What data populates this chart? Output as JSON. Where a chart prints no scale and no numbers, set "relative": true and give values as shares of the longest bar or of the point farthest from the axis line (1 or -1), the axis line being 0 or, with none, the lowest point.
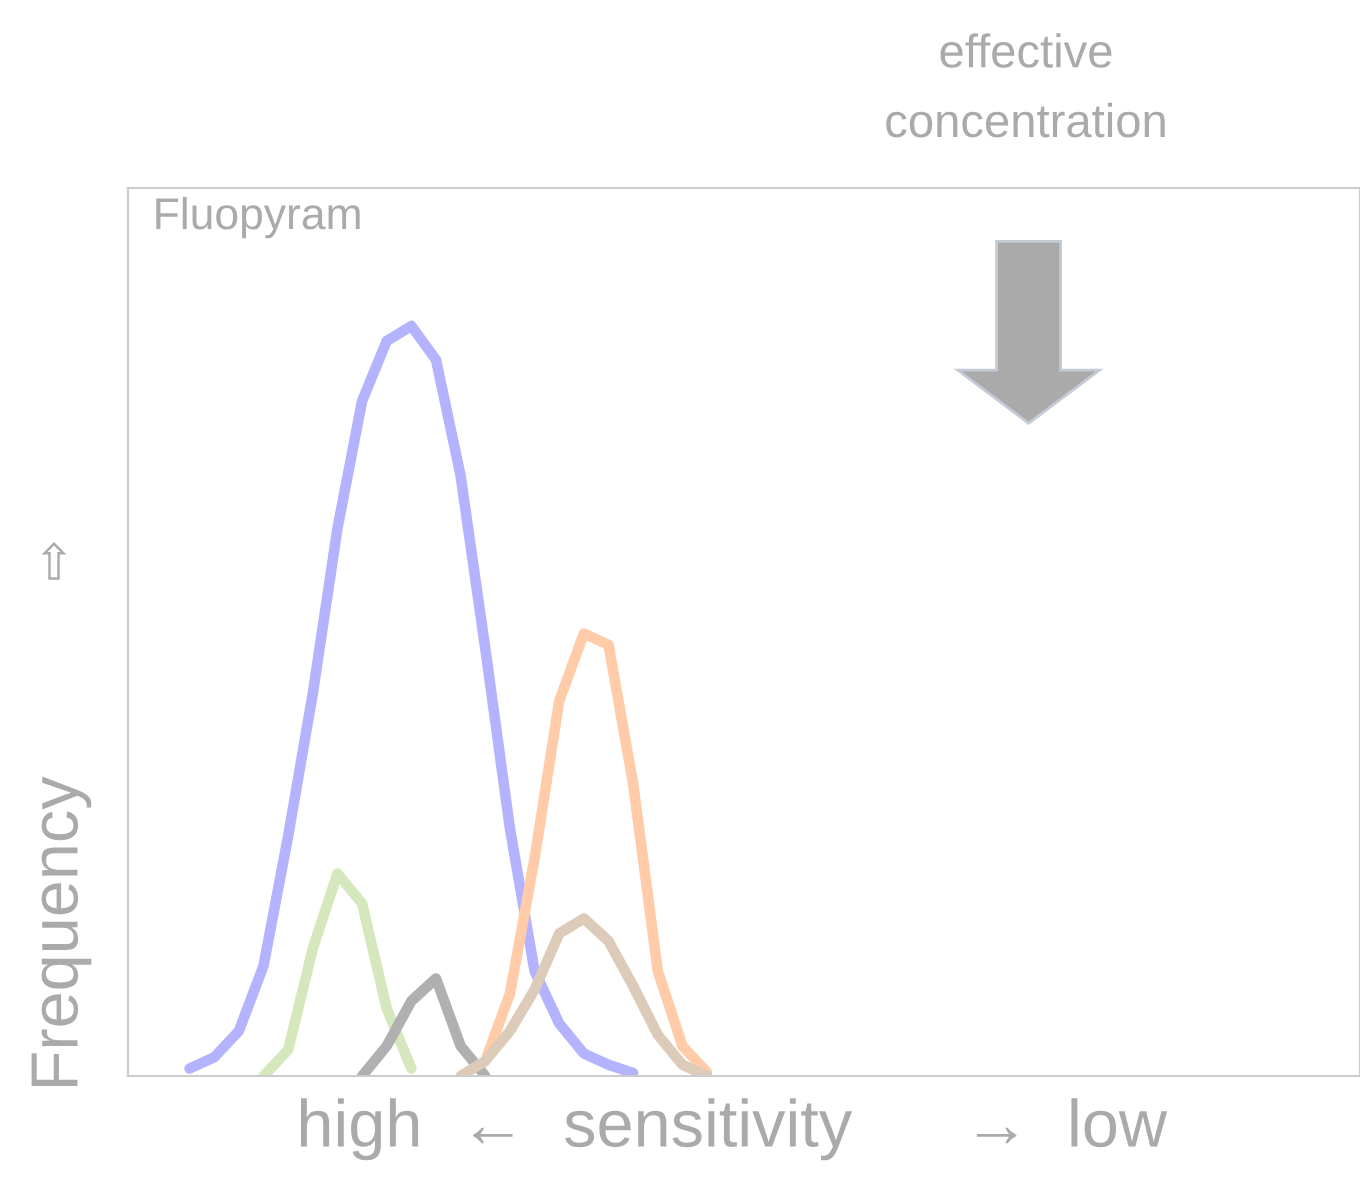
{
  "chart_data": {
    "type": "line",
    "relative": true,
    "title": "Fluopyram",
    "xlabel": "high  ←  sensitivity      →  low",
    "ylabel": "Frequency",
    "annotations": [
      "effective\nconcentration",
      "⇧"
    ],
    "legend": false,
    "categories": [
      null,
      null,
      null,
      null,
      null,
      null,
      null,
      null,
      null,
      null,
      null,
      null,
      null,
      null,
      null,
      null,
      null,
      null,
      null,
      null,
      null,
      null,
      null,
      null,
      null,
      null,
      null,
      null,
      null,
      null,
      null,
      null,
      null,
      null,
      null,
      null,
      null,
      null,
      null,
      null,
      null,
      null,
      null,
      null,
      null,
      null,
      null,
      null,
      null,
      null
    ],
    "series": [
      {
        "color": "#b3b3ff",
        "values": [
          null,
          null,
          0.01,
          0.025,
          0.06,
          0.147,
          0.32,
          0.51,
          0.73,
          0.9,
          0.98,
          1,
          0.955,
          0.8,
          0.57,
          0.33,
          0.14,
          0.07,
          0.03,
          0.015,
          0.004,
          null,
          null,
          null,
          null,
          null,
          null,
          null,
          null,
          null,
          null,
          null,
          null,
          null,
          null,
          null,
          null,
          null,
          null,
          null,
          null,
          null,
          null,
          null,
          null,
          null,
          null,
          null,
          null,
          null
        ]
      },
      {
        "color": "#d5e8bd",
        "values": [
          null,
          null,
          null,
          null,
          null,
          0,
          0.035,
          0.17,
          0.27,
          0.23,
          0.09,
          0.01,
          null,
          null,
          null,
          null,
          null,
          null,
          null,
          null,
          null,
          null,
          null,
          null,
          null,
          null,
          null,
          null,
          null,
          null,
          null,
          null,
          null,
          null,
          null,
          null,
          null,
          null,
          null,
          null,
          null,
          null,
          null,
          null,
          null,
          null,
          null,
          null,
          null,
          null
        ]
      },
      {
        "color": "#b0b0b0",
        "values": [
          null,
          null,
          null,
          null,
          null,
          null,
          null,
          null,
          null,
          0,
          0.04,
          0.1,
          0.13,
          0.04,
          0,
          null,
          null,
          null,
          null,
          null,
          null,
          null,
          null,
          null,
          null,
          null,
          null,
          null,
          null,
          null,
          null,
          null,
          null,
          null,
          null,
          null,
          null,
          null,
          null,
          null,
          null,
          null,
          null,
          null,
          null,
          null,
          null,
          null,
          null,
          null
        ]
      },
      {
        "color": "#ffcba8",
        "values": [
          null,
          null,
          null,
          null,
          null,
          null,
          null,
          null,
          null,
          null,
          null,
          null,
          null,
          null,
          0.02,
          0.11,
          0.29,
          0.5,
          0.59,
          0.575,
          0.39,
          0.14,
          0.04,
          0.005,
          null,
          null,
          null,
          null,
          null,
          null,
          null,
          null,
          null,
          null,
          null,
          null,
          null,
          null,
          null,
          null,
          null,
          null,
          null,
          null,
          null,
          null,
          null,
          null,
          null,
          null
        ]
      },
      {
        "color": "#dccbb8",
        "values": [
          null,
          null,
          null,
          null,
          null,
          null,
          null,
          null,
          null,
          null,
          null,
          null,
          null,
          0,
          0.02,
          0.06,
          0.115,
          0.19,
          0.21,
          0.18,
          0.12,
          0.055,
          0.015,
          0,
          null,
          null,
          null,
          null,
          null,
          null,
          null,
          null,
          null,
          null,
          null,
          null,
          null,
          null,
          null,
          null,
          null,
          null,
          null,
          null,
          null,
          null,
          null,
          null,
          null,
          null
        ]
      }
    ]
  }
}
